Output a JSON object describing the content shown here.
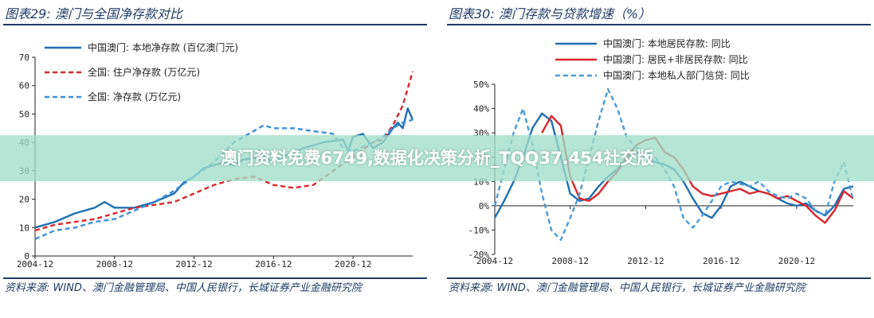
{
  "banner": {
    "text": "澳门资料免费6749,数据化决策分析_TQQ37.454社交版"
  },
  "panels": [
    {
      "title": "图表29:  澳门与全国净存款对比",
      "source": "资料来源:  WIND、澳门金融管理局、中国人民银行，长城证券产业金融研究院"
    },
    {
      "title": "图表30:  澳门存款与贷款增速（%）",
      "source": "资料来源:  WIND、澳门金融管理局、中国人民银行，长城证券产业金融研究院"
    }
  ],
  "chart_data": [
    {
      "type": "line",
      "ylim": [
        0,
        70
      ],
      "yticks": [
        "0",
        "10",
        "20",
        "30",
        "40",
        "50",
        "60",
        "70"
      ],
      "xlim": [
        "2004-12",
        "2023-12"
      ],
      "xticks": [
        "2004-12",
        "2008-12",
        "2012-12",
        "2016-12",
        "2020-12"
      ],
      "legend_position": "top",
      "series": [
        {
          "name": "中国澳门: 本地净存款 (百亿澳门元)",
          "color": "#1f6fb4",
          "dash": "solid",
          "points": [
            [
              "2004-12",
              10
            ],
            [
              "2005-12",
              12
            ],
            [
              "2006-12",
              15
            ],
            [
              "2007-12",
              17
            ],
            [
              "2008-06",
              19
            ],
            [
              "2008-12",
              17
            ],
            [
              "2009-12",
              17
            ],
            [
              "2010-12",
              19
            ],
            [
              "2011-12",
              22
            ],
            [
              "2012-06",
              26
            ],
            [
              "2012-12",
              28
            ],
            [
              "2013-06",
              31
            ],
            [
              "2014-06",
              33
            ],
            [
              "2014-12",
              32
            ],
            [
              "2015-06",
              34
            ],
            [
              "2016-06",
              35
            ],
            [
              "2016-12",
              33
            ],
            [
              "2017-06",
              35
            ],
            [
              "2018-06",
              38
            ],
            [
              "2019-06",
              40
            ],
            [
              "2020-06",
              41
            ],
            [
              "2020-09",
              37
            ],
            [
              "2020-12",
              42
            ],
            [
              "2021-06",
              43
            ],
            [
              "2021-12",
              38
            ],
            [
              "2022-06",
              40
            ],
            [
              "2022-12",
              45
            ],
            [
              "2023-03",
              47
            ],
            [
              "2023-06",
              45
            ],
            [
              "2023-09",
              52
            ],
            [
              "2023-12",
              48
            ]
          ]
        },
        {
          "name": "全国: 住户净存款 (万亿元)",
          "color": "#d9262c",
          "dash": "dashed",
          "points": [
            [
              "2004-12",
              9
            ],
            [
              "2005-12",
              11
            ],
            [
              "2006-12",
              12
            ],
            [
              "2007-12",
              13
            ],
            [
              "2008-12",
              15
            ],
            [
              "2009-12",
              17
            ],
            [
              "2010-12",
              18
            ],
            [
              "2011-12",
              19
            ],
            [
              "2012-12",
              22
            ],
            [
              "2013-12",
              25
            ],
            [
              "2014-12",
              27
            ],
            [
              "2015-12",
              28
            ],
            [
              "2016-12",
              25
            ],
            [
              "2017-12",
              24
            ],
            [
              "2018-12",
              25
            ],
            [
              "2019-12",
              30
            ],
            [
              "2020-12",
              35
            ],
            [
              "2021-12",
              40
            ],
            [
              "2022-06",
              41
            ],
            [
              "2022-12",
              46
            ],
            [
              "2023-06",
              53
            ],
            [
              "2023-12",
              65
            ]
          ]
        },
        {
          "name": "全国: 净存款 (万亿元)",
          "color": "#3b8fd9",
          "dash": "dashed",
          "points": [
            [
              "2004-12",
              6
            ],
            [
              "2005-12",
              9
            ],
            [
              "2006-12",
              10
            ],
            [
              "2007-12",
              12
            ],
            [
              "2008-12",
              13
            ],
            [
              "2009-12",
              16
            ],
            [
              "2010-12",
              19
            ],
            [
              "2011-12",
              23
            ],
            [
              "2012-12",
              28
            ],
            [
              "2013-12",
              33
            ],
            [
              "2014-12",
              40
            ],
            [
              "2015-12",
              44
            ],
            [
              "2016-06",
              46
            ],
            [
              "2016-12",
              45
            ],
            [
              "2017-12",
              45
            ],
            [
              "2018-12",
              44
            ],
            [
              "2019-12",
              43
            ],
            [
              "2020-06",
              38
            ],
            [
              "2020-12",
              37
            ],
            [
              "2021-12",
              40
            ],
            [
              "2022-06",
              42
            ],
            [
              "2022-12",
              45
            ],
            [
              "2023-06",
              47
            ],
            [
              "2023-12",
              48
            ]
          ]
        }
      ]
    },
    {
      "type": "line",
      "ylim": [
        -20,
        50
      ],
      "yticks": [
        "-20%",
        "-10%",
        "0%",
        "10%",
        "20%",
        "30%",
        "40%",
        "50%"
      ],
      "xlim": [
        "2004-12",
        "2023-12"
      ],
      "xticks": [
        "2004-12",
        "2008-12",
        "2012-12",
        "2016-12",
        "2020-12"
      ],
      "legend_position": "top",
      "series": [
        {
          "name": "中国澳门: 本地居民存款: 同比",
          "color": "#1f6fb4",
          "dash": "solid",
          "points": [
            [
              "2004-12",
              -5
            ],
            [
              "2005-06",
              2
            ],
            [
              "2005-12",
              10
            ],
            [
              "2006-06",
              20
            ],
            [
              "2006-12",
              32
            ],
            [
              "2007-06",
              38
            ],
            [
              "2007-12",
              35
            ],
            [
              "2008-06",
              20
            ],
            [
              "2008-12",
              5
            ],
            [
              "2009-06",
              2
            ],
            [
              "2009-12",
              3
            ],
            [
              "2010-06",
              8
            ],
            [
              "2010-12",
              12
            ],
            [
              "2011-06",
              15
            ],
            [
              "2011-12",
              20
            ],
            [
              "2012-06",
              22
            ],
            [
              "2012-12",
              20
            ],
            [
              "2013-06",
              18
            ],
            [
              "2013-12",
              17
            ],
            [
              "2014-06",
              15
            ],
            [
              "2014-12",
              10
            ],
            [
              "2015-06",
              3
            ],
            [
              "2015-12",
              -3
            ],
            [
              "2016-06",
              -5
            ],
            [
              "2016-12",
              0
            ],
            [
              "2017-06",
              8
            ],
            [
              "2017-12",
              10
            ],
            [
              "2018-06",
              8
            ],
            [
              "2018-12",
              6
            ],
            [
              "2019-06",
              5
            ],
            [
              "2019-12",
              3
            ],
            [
              "2020-06",
              1
            ],
            [
              "2020-12",
              0
            ],
            [
              "2021-06",
              1
            ],
            [
              "2021-12",
              -2
            ],
            [
              "2022-06",
              -4
            ],
            [
              "2022-12",
              0
            ],
            [
              "2023-06",
              7
            ],
            [
              "2023-12",
              8
            ]
          ]
        },
        {
          "name": "中国澳门: 居民+非居民存款: 同比",
          "color": "#d9262c",
          "dash": "solid",
          "points": [
            [
              "2007-06",
              30
            ],
            [
              "2007-12",
              37
            ],
            [
              "2008-06",
              33
            ],
            [
              "2008-12",
              12
            ],
            [
              "2009-06",
              3
            ],
            [
              "2009-12",
              2
            ],
            [
              "2010-06",
              5
            ],
            [
              "2010-12",
              10
            ],
            [
              "2011-06",
              14
            ],
            [
              "2011-12",
              20
            ],
            [
              "2012-06",
              25
            ],
            [
              "2012-12",
              27
            ],
            [
              "2013-06",
              28
            ],
            [
              "2013-12",
              22
            ],
            [
              "2014-06",
              20
            ],
            [
              "2014-12",
              15
            ],
            [
              "2015-06",
              8
            ],
            [
              "2015-12",
              5
            ],
            [
              "2016-06",
              4
            ],
            [
              "2016-12",
              5
            ],
            [
              "2017-06",
              6
            ],
            [
              "2017-12",
              7
            ],
            [
              "2018-06",
              5
            ],
            [
              "2018-12",
              6
            ],
            [
              "2019-06",
              5
            ],
            [
              "2019-12",
              3
            ],
            [
              "2020-06",
              4
            ],
            [
              "2020-12",
              2
            ],
            [
              "2021-06",
              0
            ],
            [
              "2021-12",
              -4
            ],
            [
              "2022-06",
              -7
            ],
            [
              "2022-12",
              -2
            ],
            [
              "2023-06",
              6
            ],
            [
              "2023-12",
              3
            ]
          ]
        },
        {
          "name": "中国澳门: 本地私人部门信贷: 同比",
          "color": "#4a9ad8",
          "dash": "dashed",
          "points": [
            [
              "2004-12",
              0
            ],
            [
              "2005-06",
              15
            ],
            [
              "2005-12",
              30
            ],
            [
              "2006-06",
              40
            ],
            [
              "2006-12",
              25
            ],
            [
              "2007-06",
              5
            ],
            [
              "2007-12",
              -10
            ],
            [
              "2008-06",
              -14
            ],
            [
              "2008-12",
              -5
            ],
            [
              "2009-06",
              5
            ],
            [
              "2009-12",
              20
            ],
            [
              "2010-06",
              35
            ],
            [
              "2010-12",
              48
            ],
            [
              "2011-06",
              40
            ],
            [
              "2011-12",
              28
            ],
            [
              "2012-06",
              24
            ],
            [
              "2012-12",
              22
            ],
            [
              "2013-06",
              20
            ],
            [
              "2013-12",
              15
            ],
            [
              "2014-06",
              8
            ],
            [
              "2014-12",
              -5
            ],
            [
              "2015-06",
              -9
            ],
            [
              "2015-12",
              -4
            ],
            [
              "2016-06",
              2
            ],
            [
              "2016-12",
              8
            ],
            [
              "2017-06",
              10
            ],
            [
              "2017-12",
              9
            ],
            [
              "2018-06",
              8
            ],
            [
              "2018-12",
              10
            ],
            [
              "2019-06",
              6
            ],
            [
              "2019-12",
              4
            ],
            [
              "2020-06",
              3
            ],
            [
              "2020-12",
              5
            ],
            [
              "2021-06",
              3
            ],
            [
              "2021-12",
              -2
            ],
            [
              "2022-06",
              -4
            ],
            [
              "2022-12",
              10
            ],
            [
              "2023-06",
              18
            ],
            [
              "2023-12",
              2
            ]
          ]
        }
      ]
    }
  ]
}
